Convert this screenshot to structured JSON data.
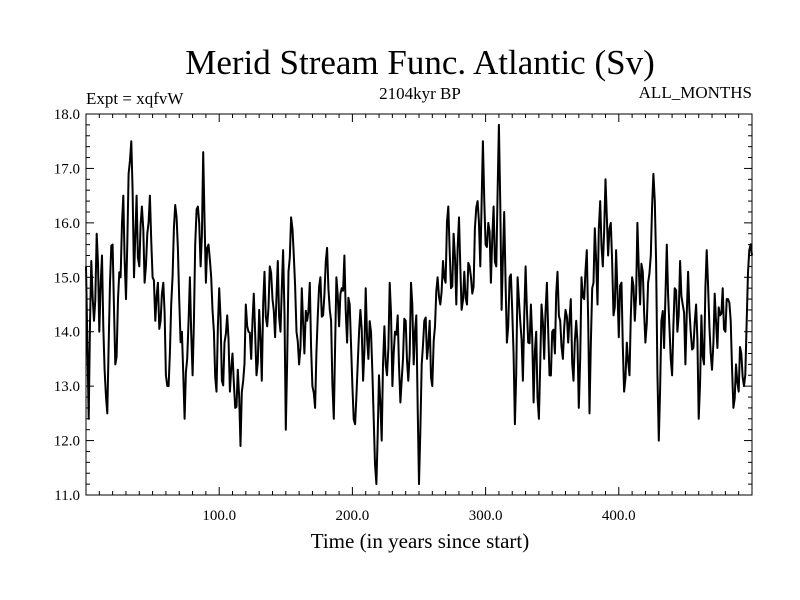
{
  "chart_data": {
    "type": "line",
    "title": "Merid Stream Func. Atlantic (Sv)",
    "subtitle_left": "Expt = xqfvW",
    "subtitle_center": "2104kyr BP",
    "subtitle_right": "ALL_MONTHS",
    "xlabel": "Time (in years since start)",
    "ylabel": "",
    "xlim": [
      0,
      500
    ],
    "ylim": [
      11.0,
      18.0
    ],
    "xticks": [
      100,
      200,
      300,
      400
    ],
    "xtick_labels": [
      "100.0",
      "200.0",
      "300.0",
      "400.0"
    ],
    "yticks": [
      11,
      12,
      13,
      14,
      15,
      16,
      17,
      18
    ],
    "ytick_labels": [
      "11.0",
      "12.0",
      "13.0",
      "14.0",
      "15.0",
      "16.0",
      "17.0",
      "18.0"
    ],
    "grid": false,
    "series": [
      {
        "name": "Merid Stream Func. Atlantic",
        "color": "#000000",
        "anchor_points": [
          [
            0,
            15.2
          ],
          [
            2,
            12.4
          ],
          [
            4,
            15.3
          ],
          [
            6,
            14.2
          ],
          [
            8,
            15.8
          ],
          [
            10,
            14.0
          ],
          [
            12,
            15.4
          ],
          [
            14,
            13.3
          ],
          [
            16,
            12.5
          ],
          [
            18,
            14.9
          ],
          [
            20,
            15.6
          ],
          [
            22,
            13.4
          ],
          [
            24,
            14.6
          ],
          [
            26,
            15.0
          ],
          [
            28,
            16.5
          ],
          [
            30,
            14.6
          ],
          [
            32,
            16.9
          ],
          [
            34,
            17.5
          ],
          [
            36,
            15.0
          ],
          [
            38,
            16.5
          ],
          [
            40,
            15.2
          ],
          [
            42,
            16.3
          ],
          [
            44,
            14.9
          ],
          [
            46,
            15.8
          ],
          [
            48,
            16.5
          ],
          [
            50,
            15.0
          ],
          [
            52,
            14.2
          ],
          [
            54,
            14.9
          ],
          [
            56,
            14.2
          ],
          [
            58,
            14.9
          ],
          [
            60,
            13.2
          ],
          [
            62,
            13.0
          ],
          [
            64,
            14.5
          ],
          [
            66,
            15.9
          ],
          [
            68,
            16.1
          ],
          [
            70,
            14.6
          ],
          [
            72,
            14.0
          ],
          [
            74,
            12.4
          ],
          [
            76,
            13.5
          ],
          [
            78,
            15.0
          ],
          [
            80,
            13.2
          ],
          [
            82,
            15.6
          ],
          [
            84,
            16.3
          ],
          [
            86,
            15.2
          ],
          [
            88,
            17.3
          ],
          [
            90,
            14.9
          ],
          [
            92,
            15.6
          ],
          [
            94,
            15.0
          ],
          [
            96,
            14.0
          ],
          [
            98,
            12.9
          ],
          [
            100,
            14.8
          ],
          [
            102,
            13.1
          ],
          [
            104,
            13.8
          ],
          [
            106,
            14.3
          ],
          [
            108,
            12.9
          ],
          [
            110,
            13.6
          ],
          [
            112,
            12.6
          ],
          [
            114,
            13.3
          ],
          [
            116,
            11.9
          ],
          [
            118,
            13.1
          ],
          [
            120,
            14.5
          ],
          [
            122,
            14.0
          ],
          [
            124,
            13.5
          ],
          [
            126,
            14.7
          ],
          [
            128,
            13.2
          ],
          [
            130,
            14.4
          ],
          [
            132,
            13.1
          ],
          [
            134,
            15.1
          ],
          [
            136,
            14.1
          ],
          [
            138,
            15.2
          ],
          [
            140,
            14.6
          ],
          [
            142,
            13.9
          ],
          [
            144,
            15.3
          ],
          [
            146,
            14.0
          ],
          [
            148,
            15.5
          ],
          [
            150,
            12.2
          ],
          [
            152,
            15.1
          ],
          [
            154,
            16.1
          ],
          [
            156,
            15.4
          ],
          [
            158,
            14.0
          ],
          [
            160,
            13.4
          ],
          [
            162,
            14.8
          ],
          [
            164,
            13.6
          ],
          [
            166,
            14.2
          ],
          [
            168,
            14.9
          ],
          [
            170,
            13.0
          ],
          [
            172,
            12.6
          ],
          [
            174,
            14.3
          ],
          [
            176,
            15.0
          ],
          [
            178,
            14.3
          ],
          [
            180,
            15.3
          ],
          [
            182,
            14.8
          ],
          [
            184,
            14.2
          ],
          [
            186,
            12.4
          ],
          [
            188,
            15.0
          ],
          [
            190,
            14.1
          ],
          [
            192,
            14.8
          ],
          [
            194,
            15.4
          ],
          [
            196,
            13.8
          ],
          [
            198,
            14.5
          ],
          [
            200,
            13.0
          ],
          [
            202,
            12.3
          ],
          [
            204,
            13.4
          ],
          [
            206,
            14.4
          ],
          [
            208,
            13.1
          ],
          [
            210,
            14.8
          ],
          [
            212,
            13.5
          ],
          [
            214,
            14.0
          ],
          [
            216,
            12.4
          ],
          [
            218,
            11.2
          ],
          [
            220,
            13.2
          ],
          [
            222,
            12.0
          ],
          [
            224,
            14.1
          ],
          [
            226,
            13.2
          ],
          [
            228,
            14.9
          ],
          [
            230,
            13.0
          ],
          [
            232,
            14.0
          ],
          [
            234,
            14.3
          ],
          [
            236,
            12.7
          ],
          [
            238,
            13.5
          ],
          [
            240,
            14.2
          ],
          [
            242,
            13.1
          ],
          [
            244,
            14.9
          ],
          [
            246,
            13.4
          ],
          [
            248,
            14.3
          ],
          [
            250,
            11.2
          ],
          [
            252,
            13.4
          ],
          [
            254,
            14.2
          ],
          [
            256,
            13.5
          ],
          [
            258,
            14.2
          ],
          [
            260,
            13.0
          ],
          [
            262,
            14.1
          ],
          [
            264,
            15.0
          ],
          [
            266,
            14.5
          ],
          [
            268,
            15.3
          ],
          [
            270,
            14.9
          ],
          [
            272,
            16.3
          ],
          [
            274,
            14.8
          ],
          [
            276,
            15.8
          ],
          [
            278,
            14.5
          ],
          [
            280,
            16.1
          ],
          [
            282,
            14.4
          ],
          [
            284,
            15.1
          ],
          [
            286,
            14.5
          ],
          [
            288,
            15.2
          ],
          [
            290,
            14.7
          ],
          [
            292,
            15.9
          ],
          [
            294,
            16.4
          ],
          [
            296,
            15.2
          ],
          [
            298,
            17.5
          ],
          [
            300,
            15.6
          ],
          [
            302,
            16.0
          ],
          [
            304,
            14.9
          ],
          [
            306,
            16.3
          ],
          [
            308,
            15.2
          ],
          [
            310,
            17.8
          ],
          [
            312,
            14.4
          ],
          [
            314,
            16.2
          ],
          [
            316,
            13.8
          ],
          [
            318,
            15.0
          ],
          [
            320,
            14.4
          ],
          [
            322,
            12.3
          ],
          [
            324,
            15.0
          ],
          [
            326,
            14.2
          ],
          [
            328,
            13.1
          ],
          [
            330,
            15.2
          ],
          [
            332,
            13.8
          ],
          [
            334,
            14.5
          ],
          [
            336,
            12.7
          ],
          [
            338,
            14.0
          ],
          [
            340,
            12.4
          ],
          [
            342,
            14.5
          ],
          [
            344,
            13.5
          ],
          [
            346,
            14.9
          ],
          [
            348,
            13.2
          ],
          [
            350,
            14.0
          ],
          [
            352,
            13.6
          ],
          [
            354,
            15.1
          ],
          [
            356,
            14.2
          ],
          [
            358,
            13.5
          ],
          [
            360,
            14.4
          ],
          [
            362,
            13.8
          ],
          [
            364,
            14.6
          ],
          [
            366,
            13.1
          ],
          [
            368,
            14.2
          ],
          [
            370,
            12.6
          ],
          [
            372,
            15.0
          ],
          [
            374,
            14.6
          ],
          [
            376,
            15.5
          ],
          [
            378,
            12.5
          ],
          [
            380,
            14.8
          ],
          [
            382,
            15.9
          ],
          [
            384,
            14.5
          ],
          [
            386,
            16.4
          ],
          [
            388,
            15.2
          ],
          [
            390,
            16.8
          ],
          [
            392,
            15.4
          ],
          [
            394,
            16.0
          ],
          [
            396,
            14.3
          ],
          [
            398,
            15.5
          ],
          [
            400,
            13.9
          ],
          [
            402,
            14.9
          ],
          [
            404,
            12.9
          ],
          [
            406,
            13.8
          ],
          [
            408,
            13.2
          ],
          [
            410,
            15.0
          ],
          [
            412,
            14.2
          ],
          [
            414,
            16.0
          ],
          [
            416,
            14.5
          ],
          [
            418,
            15.1
          ],
          [
            420,
            13.8
          ],
          [
            422,
            14.9
          ],
          [
            424,
            15.4
          ],
          [
            426,
            16.9
          ],
          [
            428,
            15.3
          ],
          [
            430,
            12.0
          ],
          [
            432,
            14.2
          ],
          [
            434,
            13.7
          ],
          [
            436,
            15.6
          ],
          [
            438,
            14.1
          ],
          [
            440,
            13.2
          ],
          [
            442,
            14.8
          ],
          [
            444,
            14.0
          ],
          [
            446,
            15.3
          ],
          [
            448,
            14.5
          ],
          [
            450,
            13.4
          ],
          [
            452,
            15.1
          ],
          [
            454,
            14.0
          ],
          [
            456,
            13.7
          ],
          [
            458,
            14.5
          ],
          [
            460,
            12.4
          ],
          [
            462,
            14.3
          ],
          [
            464,
            13.4
          ],
          [
            466,
            15.5
          ],
          [
            468,
            14.1
          ],
          [
            470,
            13.3
          ],
          [
            472,
            14.7
          ],
          [
            474,
            13.7
          ],
          [
            476,
            14.3
          ],
          [
            478,
            14.8
          ],
          [
            480,
            14.0
          ],
          [
            482,
            14.6
          ],
          [
            484,
            14.2
          ],
          [
            486,
            12.6
          ],
          [
            488,
            13.4
          ],
          [
            490,
            12.9
          ],
          [
            492,
            13.6
          ],
          [
            494,
            13.0
          ],
          [
            496,
            14.2
          ],
          [
            498,
            15.5
          ],
          [
            500,
            15.4
          ]
        ]
      }
    ]
  }
}
